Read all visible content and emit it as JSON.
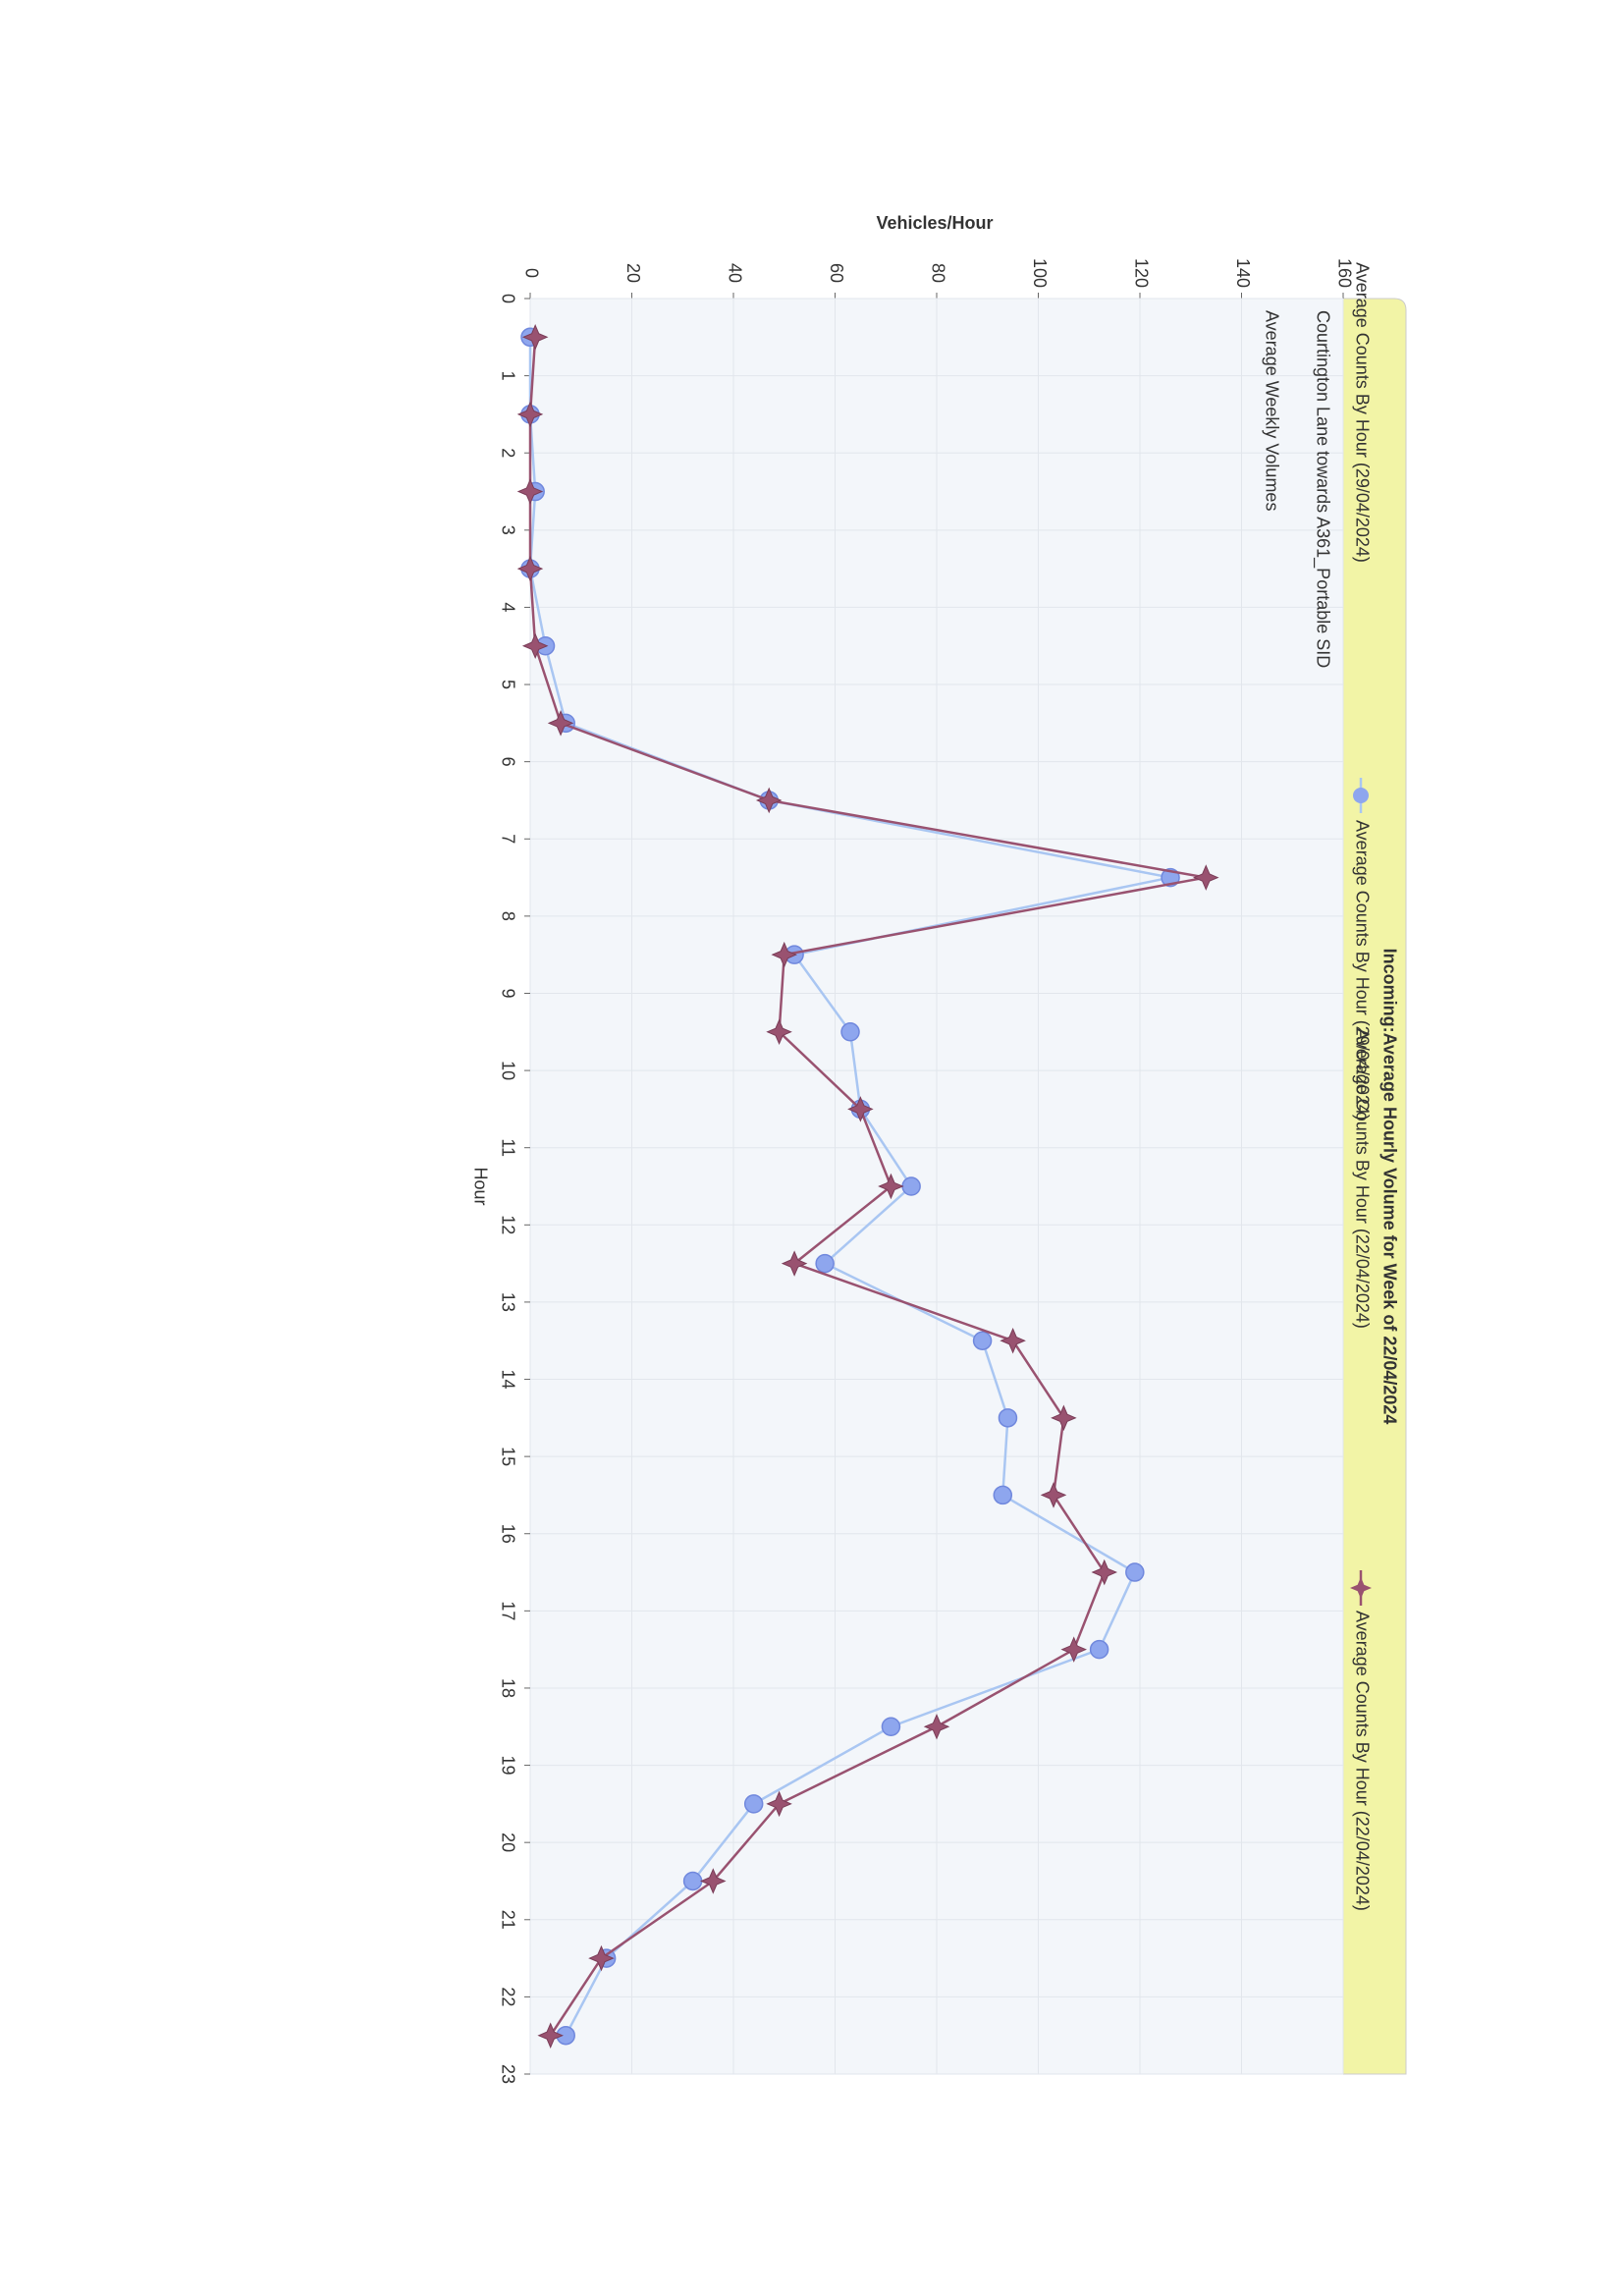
{
  "chart_data": {
    "type": "line",
    "title": "Incoming:Average Hourly Volume for Week of 22/04/2024",
    "subtitle": "Courtington Lane towards A361_Portable SID",
    "subtitle2": "Average Weekly Volumes",
    "ylabel": "Vehicles/Hour",
    "xlabel": "Hour",
    "x": [
      0.5,
      1.5,
      2.5,
      3.5,
      4.5,
      5.5,
      6.5,
      7.5,
      8.5,
      9.5,
      10.5,
      11.5,
      12.5,
      13.5,
      14.5,
      15.5,
      16.5,
      17.5,
      18.5,
      19.5,
      20.5,
      21.5,
      22.5
    ],
    "series": [
      {
        "name": "Average Counts By Hour (29/04/2024)",
        "color": "#8ea6ee",
        "marker": "circle",
        "values": [
          0,
          0,
          1,
          0,
          3,
          7,
          47,
          126,
          52,
          63,
          65,
          75,
          58,
          89,
          94,
          93,
          119,
          112,
          71,
          44,
          32,
          15,
          7
        ]
      },
      {
        "name": "Average Counts By Hour (22/04/2024)",
        "color": "#995270",
        "marker": "star",
        "values": [
          1,
          0,
          0,
          0,
          1,
          6,
          47,
          133,
          50,
          49,
          65,
          71,
          52,
          95,
          105,
          103,
          113,
          107,
          80,
          49,
          36,
          14,
          4
        ]
      }
    ],
    "xlim": [
      0,
      23
    ],
    "xticks": [
      0,
      1,
      2,
      3,
      4,
      5,
      6,
      7,
      8,
      9,
      10,
      11,
      12,
      13,
      14,
      15,
      16,
      17,
      18,
      19,
      20,
      21,
      22,
      23
    ],
    "ylim": [
      0,
      160
    ],
    "yticks": [
      0,
      20,
      40,
      60,
      80,
      100,
      120,
      140,
      160
    ],
    "grid": true
  }
}
